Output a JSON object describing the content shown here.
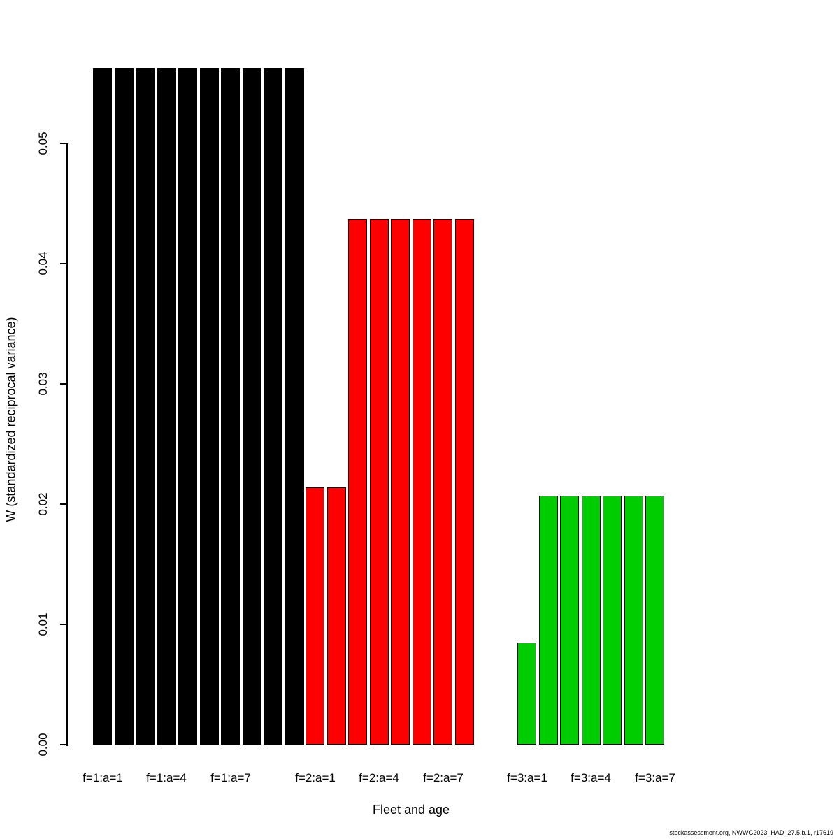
{
  "chart_data": {
    "type": "bar",
    "title": "",
    "xlabel": "Fleet and age",
    "ylabel": "W (standardized reciprocal variance)",
    "ylim": [
      0,
      0.05
    ],
    "y_ticks": [
      "0.00",
      "0.01",
      "0.02",
      "0.03",
      "0.04",
      "0.05"
    ],
    "grid": false,
    "legend": "none",
    "groups": [
      {
        "name": "fleet-1",
        "color": "#000000",
        "ages": [
          1,
          2,
          3,
          4,
          5,
          6,
          7,
          8,
          9,
          10
        ],
        "values": [
          0.0563,
          0.0563,
          0.0563,
          0.0563,
          0.0563,
          0.0563,
          0.0563,
          0.0563,
          0.0563,
          0.0563
        ],
        "tick_labels": [
          {
            "index": 0,
            "label": "f=1:a=1"
          },
          {
            "index": 3,
            "label": "f=1:a=4"
          },
          {
            "index": 6,
            "label": "f=1:a=7"
          }
        ]
      },
      {
        "name": "fleet-2",
        "color": "#FF0000",
        "ages": [
          1,
          2,
          3,
          4,
          5,
          6,
          7,
          8
        ],
        "values": [
          0.0214,
          0.0214,
          0.0437,
          0.0437,
          0.0437,
          0.0437,
          0.0437,
          0.0437
        ],
        "tick_labels": [
          {
            "index": 0,
            "label": "f=2:a=1"
          },
          {
            "index": 3,
            "label": "f=2:a=4"
          },
          {
            "index": 6,
            "label": "f=2:a=7"
          }
        ]
      },
      {
        "name": "fleet-3",
        "color": "#00CD00",
        "ages": [
          1,
          2,
          3,
          4,
          5,
          6,
          7
        ],
        "values": [
          0.0085,
          0.0207,
          0.0207,
          0.0207,
          0.0207,
          0.0207,
          0.0207
        ],
        "tick_labels": [
          {
            "index": 0,
            "label": "f=3:a=1"
          },
          {
            "index": 3,
            "label": "f=3:a=4"
          },
          {
            "index": 6,
            "label": "f=3:a=7"
          }
        ]
      }
    ]
  },
  "footer": {
    "text": "stockassessment.org, NWWG2023_HAD_27.5.b.1, r17619"
  }
}
